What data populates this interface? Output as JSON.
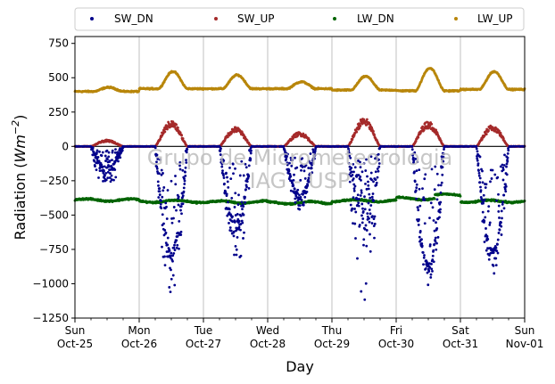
{
  "chart_data": {
    "type": "scatter",
    "xlabel": "Day",
    "ylabel": "Radiation (Wm⁻²)",
    "ylabel_parts": {
      "prefix": "Radiation (",
      "var": "Wm",
      "exp": "−2",
      "suffix": ")"
    },
    "x_range_days": [
      0,
      7
    ],
    "ylim": [
      -1250,
      800
    ],
    "yticks": [
      -1250,
      -1000,
      -750,
      -500,
      -250,
      0,
      250,
      500,
      750
    ],
    "ytick_labels": [
      "−1250",
      "−1000",
      "−750",
      "−500",
      "−250",
      "0",
      "250",
      "500",
      "750"
    ],
    "xticks": [
      {
        "day": "Sun",
        "date": "Oct-25"
      },
      {
        "day": "Mon",
        "date": "Oct-26"
      },
      {
        "day": "Tue",
        "date": "Oct-27"
      },
      {
        "day": "Wed",
        "date": "Oct-28"
      },
      {
        "day": "Thu",
        "date": "Oct-29"
      },
      {
        "day": "Fri",
        "date": "Oct-30"
      },
      {
        "day": "Sat",
        "date": "Oct-31"
      },
      {
        "day": "Sun",
        "date": "Nov-01"
      }
    ],
    "grid": "vertical-at-day-ticks",
    "zero_line": true,
    "legend": {
      "placement": "top-outside",
      "ncol": 4
    },
    "watermark": {
      "line1": "Grupo de Micrometeorologia",
      "line2": "IAG - USP"
    },
    "series": [
      {
        "name": "SW_DN",
        "color": "#00008b",
        "night_value": 0,
        "daily_min": [
          -330,
          -1090,
          -900,
          -460,
          -1200,
          -1040,
          -950
        ],
        "noon_envelope": [
          -150,
          -750,
          -550,
          -350,
          -450,
          -850,
          -750
        ]
      },
      {
        "name": "SW_UP",
        "color": "#a52a2a",
        "night_value": 0,
        "daily_peak": [
          45,
          180,
          135,
          100,
          200,
          175,
          150
        ]
      },
      {
        "name": "LW_DN",
        "color": "#006400",
        "daily_level": [
          -390,
          -400,
          -405,
          -410,
          -395,
          -380,
          -400
        ],
        "range": [
          -450,
          -340
        ]
      },
      {
        "name": "LW_UP",
        "color": "#b8860b",
        "night_level": [
          400,
          420,
          420,
          420,
          410,
          405,
          415
        ],
        "daily_peak": [
          430,
          545,
          520,
          470,
          510,
          570,
          545
        ]
      }
    ]
  }
}
